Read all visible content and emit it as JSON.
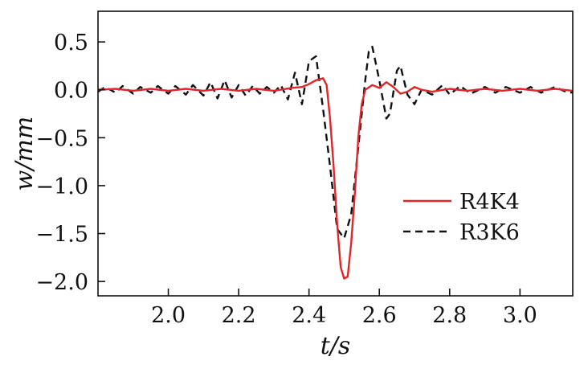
{
  "chart_data": {
    "type": "line",
    "title": "",
    "xlabel": "t/s",
    "ylabel": "w/mm",
    "xlim": [
      1.8,
      3.15
    ],
    "ylim": [
      -2.15,
      0.82
    ],
    "xticks": [
      2.0,
      2.2,
      2.4,
      2.6,
      2.8,
      3.0
    ],
    "xtick_labels": [
      "2.0",
      "2.2",
      "2.4",
      "2.6",
      "2.8",
      "3.0"
    ],
    "yticks": [
      0.5,
      0.0,
      -0.5,
      -1.0,
      -1.5,
      -2.0
    ],
    "ytick_labels": [
      "0.5",
      "0.0",
      "−0.5",
      "−1.0",
      "−1.5",
      "−2.0"
    ],
    "grid": false,
    "legend": "center-right",
    "series": [
      {
        "name": "R4K4",
        "color": "#e0262a",
        "style": "solid",
        "x": [
          1.8,
          1.85,
          1.9,
          1.95,
          2.0,
          2.05,
          2.1,
          2.15,
          2.2,
          2.25,
          2.3,
          2.35,
          2.38,
          2.4,
          2.42,
          2.44,
          2.45,
          2.46,
          2.47,
          2.48,
          2.49,
          2.5,
          2.51,
          2.52,
          2.53,
          2.54,
          2.55,
          2.56,
          2.58,
          2.6,
          2.62,
          2.64,
          2.66,
          2.68,
          2.7,
          2.72,
          2.75,
          2.8,
          2.85,
          2.9,
          2.95,
          3.0,
          3.05,
          3.1,
          3.15
        ],
        "y": [
          0.0,
          0.01,
          -0.01,
          0.01,
          -0.01,
          0.01,
          -0.01,
          0.01,
          -0.01,
          0.01,
          -0.01,
          0.02,
          0.03,
          0.06,
          0.1,
          0.12,
          0.05,
          -0.3,
          -0.8,
          -1.4,
          -1.85,
          -1.97,
          -1.95,
          -1.6,
          -1.1,
          -0.5,
          -0.15,
          0.0,
          0.05,
          0.02,
          0.08,
          0.03,
          -0.04,
          -0.02,
          0.03,
          0.0,
          -0.02,
          0.01,
          -0.01,
          0.01,
          -0.01,
          0.01,
          -0.01,
          0.01,
          -0.01
        ]
      },
      {
        "name": "R3K6",
        "color": "#111111",
        "style": "dashed",
        "x": [
          1.8,
          1.82,
          1.85,
          1.87,
          1.9,
          1.92,
          1.95,
          1.97,
          2.0,
          2.02,
          2.05,
          2.07,
          2.1,
          2.12,
          2.14,
          2.16,
          2.18,
          2.2,
          2.22,
          2.24,
          2.26,
          2.28,
          2.3,
          2.32,
          2.34,
          2.36,
          2.38,
          2.4,
          2.42,
          2.44,
          2.46,
          2.48,
          2.5,
          2.52,
          2.54,
          2.56,
          2.57,
          2.58,
          2.6,
          2.62,
          2.63,
          2.65,
          2.66,
          2.68,
          2.7,
          2.72,
          2.75,
          2.78,
          2.8,
          2.83,
          2.86,
          2.9,
          2.93,
          2.96,
          3.0,
          3.03,
          3.06,
          3.1,
          3.13,
          3.15
        ],
        "y": [
          -0.02,
          0.03,
          -0.03,
          0.04,
          -0.04,
          0.03,
          -0.03,
          0.04,
          -0.04,
          0.04,
          -0.05,
          0.05,
          -0.06,
          0.08,
          -0.09,
          0.1,
          -0.08,
          0.05,
          -0.06,
          0.04,
          -0.04,
          0.03,
          -0.03,
          0.05,
          -0.1,
          0.18,
          -0.15,
          0.3,
          0.35,
          -0.2,
          -0.8,
          -1.45,
          -1.55,
          -1.3,
          -0.6,
          0.1,
          0.4,
          0.45,
          0.1,
          -0.3,
          -0.25,
          0.2,
          0.25,
          -0.05,
          -0.15,
          0.0,
          -0.05,
          0.05,
          -0.05,
          0.04,
          -0.04,
          0.03,
          -0.03,
          0.03,
          -0.03,
          0.03,
          -0.03,
          0.03,
          -0.02,
          -0.03
        ]
      }
    ]
  }
}
